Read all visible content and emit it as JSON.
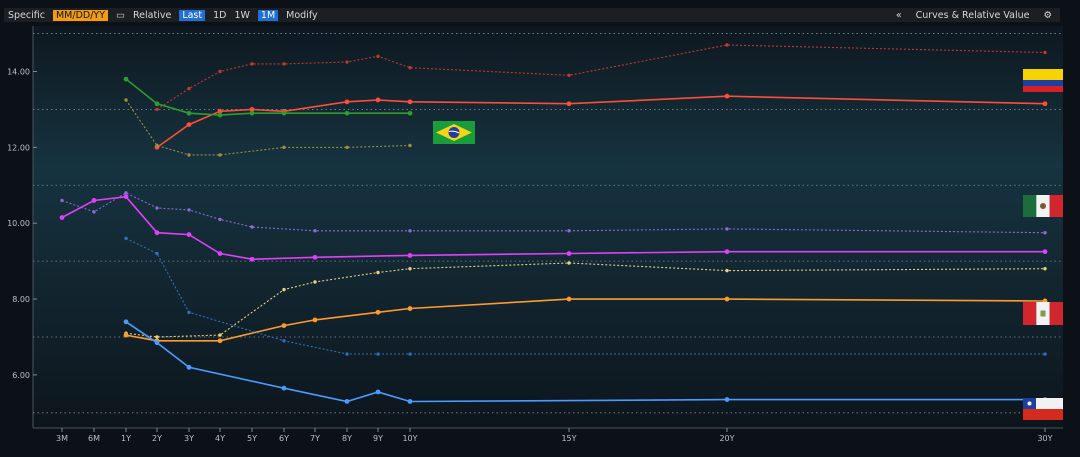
{
  "toolbar": {
    "specific_label": "Specific",
    "date_value": "MM/DD/YY",
    "relative_label": "Relative",
    "last_label": "Last",
    "btn_1d": "1D",
    "btn_1w": "1W",
    "btn_1m": "1M",
    "modify_label": "Modify",
    "collapse_glyph": "«",
    "panel_title": "Curves & Relative Value",
    "gear_glyph": "⚙"
  },
  "chart_data": {
    "type": "line",
    "tenors": [
      "3M",
      "6M",
      "1Y",
      "2Y",
      "3Y",
      "4Y",
      "5Y",
      "6Y",
      "7Y",
      "8Y",
      "9Y",
      "10Y",
      "15Y",
      "20Y",
      "30Y"
    ],
    "tenor_years": [
      0.25,
      0.5,
      1,
      2,
      3,
      4,
      5,
      6,
      7,
      8,
      9,
      10,
      15,
      20,
      30
    ],
    "ylim": [
      4.6,
      15.2
    ],
    "yticks": [
      6,
      8,
      10,
      12,
      14
    ],
    "ytick_labels": [
      "6.00",
      "8.00",
      "10.00",
      "12.00",
      "14.00"
    ],
    "dashed_levels": [
      5,
      7,
      9,
      11,
      13,
      15
    ],
    "series": [
      {
        "color": "#c0392b",
        "style": "dotted",
        "x": [
          2,
          3,
          4,
          5,
          6,
          8,
          9,
          10,
          15,
          20,
          30
        ],
        "y": [
          13.0,
          13.55,
          14.0,
          14.2,
          14.2,
          14.25,
          14.4,
          14.1,
          13.9,
          14.7,
          14.5
        ]
      },
      {
        "color": "#ff4d3a",
        "style": "solid",
        "x": [
          2,
          3,
          4,
          5,
          6,
          8,
          9,
          10,
          15,
          20,
          30
        ],
        "y": [
          12.0,
          12.6,
          12.95,
          13.0,
          12.95,
          13.2,
          13.25,
          13.2,
          13.15,
          13.35,
          13.15
        ]
      },
      {
        "color": "#2e9d2e",
        "style": "solid",
        "x": [
          1,
          2,
          3,
          4,
          5,
          6,
          8,
          10
        ],
        "y": [
          13.8,
          13.15,
          12.9,
          12.85,
          12.9,
          12.9,
          12.9,
          12.9
        ]
      },
      {
        "color": "#a08e3c",
        "style": "dotted",
        "x": [
          1,
          2,
          3,
          4,
          6,
          8,
          10
        ],
        "y": [
          13.25,
          12.05,
          11.8,
          11.8,
          12.0,
          12.0,
          12.05
        ]
      },
      {
        "color": "#8a6bd6",
        "style": "dotted",
        "x": [
          0.25,
          0.5,
          1,
          2,
          3,
          4,
          5,
          7,
          10,
          15,
          20,
          30
        ],
        "y": [
          10.6,
          10.3,
          10.8,
          10.4,
          10.35,
          10.1,
          9.9,
          9.8,
          9.8,
          9.8,
          9.85,
          9.75
        ]
      },
      {
        "color": "#e040fb",
        "style": "solid",
        "x": [
          0.25,
          0.5,
          1,
          2,
          3,
          4,
          5,
          7,
          10,
          15,
          20,
          30
        ],
        "y": [
          10.15,
          10.6,
          10.7,
          9.75,
          9.7,
          9.2,
          9.05,
          9.1,
          9.15,
          9.2,
          9.25,
          9.25
        ]
      },
      {
        "color": "#e8d27a",
        "style": "dotted",
        "x": [
          1,
          2,
          4,
          6,
          7,
          9,
          10,
          15,
          20,
          30
        ],
        "y": [
          7.1,
          7.0,
          7.05,
          8.25,
          8.45,
          8.7,
          8.8,
          8.95,
          8.75,
          8.8
        ]
      },
      {
        "color": "#ff9a2e",
        "style": "solid",
        "x": [
          1,
          2,
          4,
          6,
          7,
          9,
          10,
          15,
          20,
          30
        ],
        "y": [
          7.05,
          6.9,
          6.9,
          7.3,
          7.45,
          7.65,
          7.75,
          8.0,
          8.0,
          7.95
        ]
      },
      {
        "color": "#2f6fc2",
        "style": "dotted",
        "x": [
          1,
          2,
          3,
          6,
          8,
          9,
          10,
          30
        ],
        "y": [
          9.6,
          9.2,
          7.65,
          6.9,
          6.55,
          6.55,
          6.55,
          6.55
        ]
      },
      {
        "color": "#4b9bff",
        "style": "solid",
        "x": [
          1,
          2,
          3,
          6,
          8,
          9,
          10,
          20,
          30
        ],
        "y": [
          7.4,
          6.85,
          6.2,
          5.65,
          5.3,
          5.55,
          5.3,
          5.35,
          5.35
        ]
      }
    ]
  },
  "flags": [
    "colombia-flag",
    "brazil-flag",
    "mexico-flag",
    "peru-flag",
    "chile-flag"
  ]
}
